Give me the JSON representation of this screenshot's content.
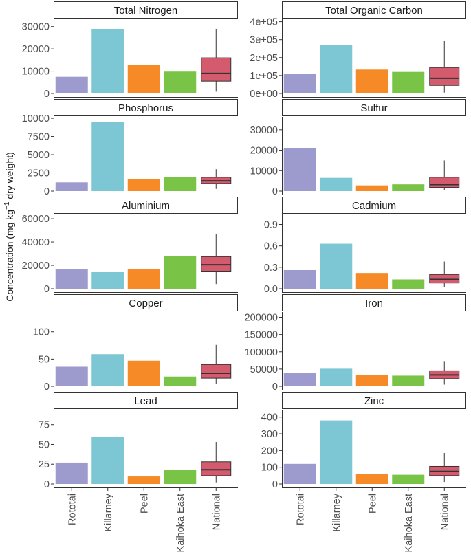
{
  "chart_data": {
    "type": "bar",
    "ylabel": "Concentration (mg kg-1 dry weight)",
    "ylabel_parts": {
      "prefix": "Concentration (mg kg",
      "superscript": "−1",
      "suffix": " dry weight)"
    },
    "categories": [
      "Rototai",
      "Killarney",
      "Peel",
      "Kaihoka East",
      "National"
    ],
    "colors": {
      "Rototai": "#9d9acd",
      "Killarney": "#7dc6d3",
      "Peel": "#f58a27",
      "Kaihoka East": "#79c446",
      "National": "#d45a6e"
    },
    "panels": [
      {
        "title": "Total Nitrogen",
        "ylim": [
          0,
          33000
        ],
        "ticks": [
          0,
          10000,
          20000,
          30000
        ],
        "tick_labels": [
          "0",
          "10000",
          "20000",
          "30000"
        ],
        "bars": {
          "Rototai": 7500,
          "Killarney": 29000,
          "Peel": 12800,
          "Kaihoka East": 9800
        },
        "national": {
          "min": 800,
          "q1": 5500,
          "median": 9000,
          "q3": 16000,
          "max": 29000
        }
      },
      {
        "title": "Total Organic Carbon",
        "ylim": [
          0,
          410000
        ],
        "ticks": [
          0,
          100000,
          200000,
          300000,
          400000
        ],
        "tick_labels": [
          "0e+00",
          "1e+05",
          "2e+05",
          "3e+05",
          "4e+05"
        ],
        "bars": {
          "Rototai": 110000,
          "Killarney": 270000,
          "Peel": 133000,
          "Kaihoka East": 120000
        },
        "national": {
          "min": 5000,
          "q1": 45000,
          "median": 85000,
          "q3": 145000,
          "max": 295000
        }
      },
      {
        "title": "Phosphorus",
        "ylim": [
          0,
          10100
        ],
        "ticks": [
          0,
          2500,
          5000,
          7500,
          10000
        ],
        "tick_labels": [
          "0",
          "2500",
          "5000",
          "7500",
          "10000"
        ],
        "bars": {
          "Rototai": 1200,
          "Killarney": 9500,
          "Peel": 1700,
          "Kaihoka East": 1950
        },
        "national": {
          "min": 300,
          "q1": 1050,
          "median": 1400,
          "q3": 1900,
          "max": 3000
        }
      },
      {
        "title": "Sulfur",
        "ylim": [
          0,
          36000
        ],
        "ticks": [
          0,
          10000,
          20000,
          30000
        ],
        "tick_labels": [
          "0",
          "10000",
          "20000",
          "30000"
        ],
        "bars": {
          "Rototai": 21000,
          "Killarney": 6500,
          "Peel": 2800,
          "Kaihoka East": 3300
        },
        "national": {
          "min": 500,
          "q1": 1800,
          "median": 3200,
          "q3": 6800,
          "max": 15000
        }
      },
      {
        "title": "Aluminium",
        "ylim": [
          0,
          63000
        ],
        "ticks": [
          0,
          20000,
          40000,
          60000
        ],
        "tick_labels": [
          "0",
          "20000",
          "40000",
          "60000"
        ],
        "bars": {
          "Rototai": 16500,
          "Killarney": 14500,
          "Peel": 17000,
          "Kaihoka East": 28000
        },
        "national": {
          "min": 4000,
          "q1": 15000,
          "median": 20500,
          "q3": 27500,
          "max": 47000
        }
      },
      {
        "title": "Cadmium",
        "ylim": [
          0,
          1.03
        ],
        "ticks": [
          0,
          0.3,
          0.6,
          0.9
        ],
        "tick_labels": [
          "0.0",
          "0.3",
          "0.6",
          "0.9"
        ],
        "bars": {
          "Rototai": 0.26,
          "Killarney": 0.63,
          "Peel": 0.22,
          "Kaihoka East": 0.13
        },
        "national": {
          "min": 0.02,
          "q1": 0.08,
          "median": 0.13,
          "q3": 0.2,
          "max": 0.38
        }
      },
      {
        "title": "Copper",
        "ylim": [
          0,
          135
        ],
        "ticks": [
          0,
          50,
          100
        ],
        "tick_labels": [
          "0",
          "50",
          "100"
        ],
        "bars": {
          "Rototai": 36,
          "Killarney": 59,
          "Peel": 47,
          "Kaihoka East": 18
        },
        "national": {
          "min": 5,
          "q1": 15,
          "median": 24,
          "q3": 40,
          "max": 76
        }
      },
      {
        "title": "Iron",
        "ylim": [
          0,
          213000
        ],
        "ticks": [
          0,
          50000,
          100000,
          150000,
          200000
        ],
        "tick_labels": [
          "0",
          "50000",
          "100000",
          "150000",
          "200000"
        ],
        "bars": {
          "Rototai": 38000,
          "Killarney": 51000,
          "Peel": 32000,
          "Kaihoka East": 31000
        },
        "national": {
          "min": 5000,
          "q1": 22000,
          "median": 33000,
          "q3": 45000,
          "max": 73000
        }
      },
      {
        "title": "Lead",
        "ylim": [
          0,
          93
        ],
        "ticks": [
          0,
          25,
          50,
          75
        ],
        "tick_labels": [
          "0",
          "25",
          "50",
          "75"
        ],
        "bars": {
          "Rototai": 27,
          "Killarney": 60,
          "Peel": 9.5,
          "Kaihoka East": 18
        },
        "national": {
          "min": 2,
          "q1": 10.5,
          "median": 18,
          "q3": 28,
          "max": 53
        }
      },
      {
        "title": "Zinc",
        "ylim": [
          0,
          440
        ],
        "ticks": [
          0,
          100,
          200,
          300,
          400
        ],
        "tick_labels": [
          "0",
          "100",
          "200",
          "300",
          "400"
        ],
        "bars": {
          "Rototai": 120,
          "Killarney": 380,
          "Peel": 60,
          "Kaihoka East": 55
        },
        "national": {
          "min": 12,
          "q1": 50,
          "median": 75,
          "q3": 105,
          "max": 185
        }
      }
    ]
  }
}
